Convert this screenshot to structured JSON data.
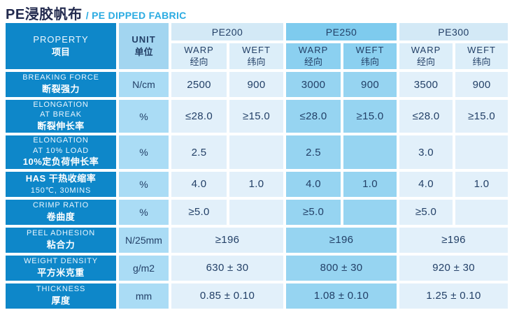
{
  "title": {
    "zh": "PE浸胶帆布",
    "en": "/ PE DIPPED FABRIC"
  },
  "colors": {
    "property_column": "#0e87c9",
    "unit_column": "#a7d9f3",
    "light_cells": "#e2f0fa",
    "highlight_cells": "#96d4f1",
    "title_zh": "#222a4e",
    "title_en": "#2aabe2",
    "cell_text": "#234067"
  },
  "table": {
    "property_header": {
      "en": "PROPERTY",
      "zh": "项目"
    },
    "unit_header": {
      "en": "UNIT",
      "zh": "单位"
    },
    "groups": [
      {
        "label": "PE200",
        "highlight": false
      },
      {
        "label": "PE250",
        "highlight": true
      },
      {
        "label": "PE300",
        "highlight": false
      }
    ],
    "subheader": {
      "warp_en": "WARP",
      "warp_zh": "经向",
      "weft_en": "WEFT",
      "weft_zh": "纬向"
    },
    "rows": [
      {
        "id": "breaking-force",
        "property": [
          {
            "t": "BREAKING FORCE",
            "s": "en"
          },
          {
            "t": "断裂强力",
            "s": "zh"
          }
        ],
        "unit": "N/cm",
        "span": false,
        "tall": false,
        "values": [
          "2500",
          "900",
          "3000",
          "900",
          "3500",
          "900"
        ]
      },
      {
        "id": "elongation-at-break",
        "property": [
          {
            "t": "ELONGATION",
            "s": "en"
          },
          {
            "t": "AT BREAK",
            "s": "en"
          },
          {
            "t": "断裂伸长率",
            "s": "zh"
          }
        ],
        "unit": "%",
        "span": false,
        "tall": true,
        "values": [
          "≤28.0",
          "≥15.0",
          "≤28.0",
          "≥15.0",
          "≤28.0",
          "≥15.0"
        ]
      },
      {
        "id": "elongation-at-10-load",
        "property": [
          {
            "t": "ELONGATION",
            "s": "en"
          },
          {
            "t": "AT 10% LOAD",
            "s": "en"
          },
          {
            "t": "10%定负荷伸长率",
            "s": "zh"
          }
        ],
        "unit": "%",
        "span": false,
        "tall": true,
        "values": [
          "2.5",
          "",
          "2.5",
          "",
          "3.0",
          ""
        ]
      },
      {
        "id": "has-heat-shrinkage",
        "property": [
          {
            "t": "HAS  干热收缩率",
            "s": "zh"
          },
          {
            "t": "150℃, 30MINS",
            "s": "en"
          }
        ],
        "unit": "%",
        "span": false,
        "tall": false,
        "values": [
          "4.0",
          "1.0",
          "4.0",
          "1.0",
          "4.0",
          "1.0"
        ]
      },
      {
        "id": "crimp-ratio",
        "property": [
          {
            "t": "CRIMP RATIO",
            "s": "en"
          },
          {
            "t": "卷曲度",
            "s": "zh"
          }
        ],
        "unit": "%",
        "span": false,
        "tall": false,
        "values": [
          "≥5.0",
          "",
          "≥5.0",
          "",
          "≥5.0",
          ""
        ]
      },
      {
        "id": "peel-adhesion",
        "property": [
          {
            "t": "PEEL ADHESION",
            "s": "en"
          },
          {
            "t": "粘合力",
            "s": "zh"
          }
        ],
        "unit": "N/25mm",
        "span": true,
        "tall": false,
        "values": [
          "≥196",
          "≥196",
          "≥196"
        ]
      },
      {
        "id": "weight-density",
        "property": [
          {
            "t": "WEIGHT DENSITY",
            "s": "en"
          },
          {
            "t": "平方米克重",
            "s": "zh"
          }
        ],
        "unit": "g/m2",
        "span": true,
        "tall": false,
        "values": [
          "630 ± 30",
          "800 ± 30",
          "920 ± 30"
        ]
      },
      {
        "id": "thickness",
        "property": [
          {
            "t": "THICKNESS",
            "s": "en"
          },
          {
            "t": "厚度",
            "s": "zh"
          }
        ],
        "unit": "mm",
        "span": true,
        "tall": false,
        "values": [
          "0.85 ± 0.10",
          "1.08 ± 0.10",
          "1.25 ± 0.10"
        ]
      }
    ]
  }
}
